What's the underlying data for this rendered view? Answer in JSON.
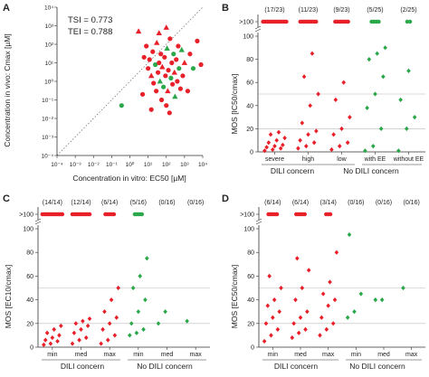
{
  "colors": {
    "red": "#e8202a",
    "green": "#2aa84a",
    "axis": "#333333",
    "ref": "#bbbbbb"
  },
  "chart_data": [
    {
      "panel": "A",
      "type": "scatter",
      "xlabel": "Concentration in vitro: EC50 [µM]",
      "ylabel": "Concentration in vivo: Cmax [µM]",
      "xscale": "log",
      "yscale": "log",
      "xlim": [
        0.0001,
        10000
      ],
      "ylim": [
        0.0001,
        10000
      ],
      "xticks": [
        "10⁻⁴",
        "10⁻³",
        "10⁻²",
        "10⁻¹",
        "10⁰",
        "10¹",
        "10²",
        "10³",
        "10⁴"
      ],
      "yticks": [
        "10⁻⁴",
        "10⁻³",
        "10⁻²",
        "10⁻¹",
        "10⁰",
        "10¹",
        "10²",
        "10³",
        "10⁴"
      ],
      "annotations": [
        "TSI = 0.773",
        "TEI = 0.788"
      ],
      "diagonal": "y = x (dotted)",
      "points": [
        {
          "x": 0.35,
          "y": 0.05,
          "c": "green",
          "m": "circle"
        },
        {
          "x": 3,
          "y": 500,
          "c": "red",
          "m": "triangle"
        },
        {
          "x": 6,
          "y": 20,
          "c": "red",
          "m": "circle"
        },
        {
          "x": 8,
          "y": 80,
          "c": "red",
          "m": "circle"
        },
        {
          "x": 10,
          "y": 5,
          "c": "red",
          "m": "circle"
        },
        {
          "x": 12,
          "y": 15,
          "c": "red",
          "m": "circle"
        },
        {
          "x": 15,
          "y": 2,
          "c": "red",
          "m": "triangle"
        },
        {
          "x": 18,
          "y": 40,
          "c": "red",
          "m": "circle"
        },
        {
          "x": 20,
          "y": 0.8,
          "c": "red",
          "m": "circle"
        },
        {
          "x": 25,
          "y": 8,
          "c": "green",
          "m": "circle"
        },
        {
          "x": 28,
          "y": 0.3,
          "c": "red",
          "m": "circle"
        },
        {
          "x": 30,
          "y": 120,
          "c": "red",
          "m": "triangle"
        },
        {
          "x": 35,
          "y": 3,
          "c": "red",
          "m": "circle"
        },
        {
          "x": 40,
          "y": 10,
          "c": "red",
          "m": "circle"
        },
        {
          "x": 45,
          "y": 1,
          "c": "green",
          "m": "triangle"
        },
        {
          "x": 50,
          "y": 30,
          "c": "red",
          "m": "circle"
        },
        {
          "x": 55,
          "y": 0.1,
          "c": "red",
          "m": "circle"
        },
        {
          "x": 60,
          "y": 6,
          "c": "red",
          "m": "triangle"
        },
        {
          "x": 70,
          "y": 0.5,
          "c": "green",
          "m": "circle"
        },
        {
          "x": 80,
          "y": 20,
          "c": "red",
          "m": "circle"
        },
        {
          "x": 90,
          "y": 2,
          "c": "red",
          "m": "circle"
        },
        {
          "x": 100,
          "y": 0.05,
          "c": "red",
          "m": "circle"
        },
        {
          "x": 110,
          "y": 60,
          "c": "green",
          "m": "triangle"
        },
        {
          "x": 120,
          "y": 0.3,
          "c": "red",
          "m": "triangle"
        },
        {
          "x": 130,
          "y": 4,
          "c": "red",
          "m": "circle"
        },
        {
          "x": 150,
          "y": 0.02,
          "c": "red",
          "m": "circle"
        },
        {
          "x": 160,
          "y": 200,
          "c": "red",
          "m": "circle"
        },
        {
          "x": 180,
          "y": 1.5,
          "c": "green",
          "m": "circle"
        },
        {
          "x": 200,
          "y": 10,
          "c": "red",
          "m": "circle"
        },
        {
          "x": 220,
          "y": 0.7,
          "c": "red",
          "m": "circle"
        },
        {
          "x": 250,
          "y": 30,
          "c": "green",
          "m": "circle"
        },
        {
          "x": 280,
          "y": 3,
          "c": "red",
          "m": "triangle"
        },
        {
          "x": 300,
          "y": 0.15,
          "c": "green",
          "m": "triangle"
        },
        {
          "x": 350,
          "y": 15,
          "c": "red",
          "m": "circle"
        },
        {
          "x": 400,
          "y": 1,
          "c": "red",
          "m": "circle"
        },
        {
          "x": 450,
          "y": 80,
          "c": "red",
          "m": "circle"
        },
        {
          "x": 500,
          "y": 5,
          "c": "green",
          "m": "circle"
        },
        {
          "x": 600,
          "y": 0.4,
          "c": "red",
          "m": "circle"
        },
        {
          "x": 700,
          "y": 50,
          "c": "green",
          "m": "triangle"
        },
        {
          "x": 800,
          "y": 2,
          "c": "red",
          "m": "circle"
        },
        {
          "x": 1000,
          "y": 10,
          "c": "red",
          "m": "triangle"
        },
        {
          "x": 1500,
          "y": 0.3,
          "c": "red",
          "m": "circle"
        },
        {
          "x": 2000,
          "y": 30,
          "c": "red",
          "m": "circle"
        },
        {
          "x": 3000,
          "y": 5,
          "c": "green",
          "m": "circle"
        },
        {
          "x": 5000,
          "y": 150,
          "c": "red",
          "m": "circle"
        },
        {
          "x": 8000,
          "y": 8,
          "c": "red",
          "m": "circle"
        },
        {
          "x": 40,
          "y": 400,
          "c": "red",
          "m": "triangle"
        },
        {
          "x": 100,
          "y": 800,
          "c": "red",
          "m": "triangle"
        },
        {
          "x": 15,
          "y": 0.03,
          "c": "red",
          "m": "circle"
        },
        {
          "x": 5,
          "y": 0.2,
          "c": "red",
          "m": "circle"
        }
      ]
    },
    {
      "panel": "B",
      "type": "scatter",
      "ylabel": "MOS [IC50/cmax]",
      "ylim": [
        0,
        100
      ],
      "yticks": [
        "0",
        "20",
        "40",
        "60",
        "80",
        "100",
        ">100"
      ],
      "ref_lines": [
        20,
        50
      ],
      "counts": [
        "(17/23)",
        "(11/23)",
        "(9/23)",
        "(5/25)",
        "(2/25)"
      ],
      "categories": [
        "severe",
        "high",
        "low",
        "with EE",
        "without EE"
      ],
      "group_labels": [
        "DILI concern",
        "No DILI concern"
      ],
      "columns": [
        {
          "color": "red",
          "values": [
            1,
            2,
            3,
            4,
            5,
            6,
            8,
            10,
            12,
            15,
            17
          ],
          "above": 17
        },
        {
          "color": "red",
          "values": [
            3,
            5,
            8,
            10,
            15,
            18,
            25,
            40,
            50,
            65,
            85
          ],
          "above": 11
        },
        {
          "color": "red",
          "values": [
            2,
            5,
            8,
            15,
            20,
            30,
            45,
            60
          ],
          "above": 9
        },
        {
          "color": "green",
          "values": [
            1,
            5,
            20,
            38,
            50,
            65,
            80,
            85,
            90
          ],
          "above": 5
        },
        {
          "color": "green",
          "values": [
            1,
            20,
            30,
            45,
            70
          ],
          "above": 2
        }
      ]
    },
    {
      "panel": "C",
      "type": "scatter",
      "ylabel": "MOS [EC10/cmax]",
      "ylim": [
        0,
        100
      ],
      "yticks": [
        "0",
        "20",
        "40",
        "60",
        "80",
        "100",
        ">100"
      ],
      "ref_lines": [
        20,
        50
      ],
      "counts": [
        "(14/14)",
        "(12/14)",
        "(6/14)",
        "(5/16)",
        "(0/16)",
        "(0/16)"
      ],
      "categories": [
        "min",
        "med",
        "max",
        "min",
        "med",
        "max"
      ],
      "group_labels": [
        "DILI concern",
        "No DILI concern"
      ],
      "columns": [
        {
          "color": "red",
          "values": [
            2,
            3,
            5,
            6,
            8,
            10,
            12,
            15,
            18
          ],
          "above": 14
        },
        {
          "color": "red",
          "values": [
            3,
            6,
            8,
            12,
            15,
            18,
            20,
            22,
            24
          ],
          "above": 12
        },
        {
          "color": "red",
          "values": [
            3,
            6,
            10,
            15,
            20,
            25,
            30,
            40,
            50
          ],
          "above": 6
        },
        {
          "color": "green",
          "values": [
            10,
            12,
            15,
            20,
            30,
            40,
            50,
            60,
            75
          ],
          "above": 5
        },
        {
          "color": "green",
          "values": [
            20,
            30
          ],
          "above": 0
        },
        {
          "color": "green",
          "values": [
            22
          ],
          "above": 0
        }
      ]
    },
    {
      "panel": "D",
      "type": "scatter",
      "ylabel": "MOS [EC50/cmax]",
      "ylim": [
        0,
        100
      ],
      "yticks": [
        "0",
        "20",
        "40",
        "60",
        "80",
        "100",
        ">100"
      ],
      "ref_lines": [
        20,
        50
      ],
      "counts": [
        "(6/14)",
        "(6/14)",
        "(3/14)",
        "(0/16)",
        "(0/16)",
        "(0/16)"
      ],
      "categories": [
        "min",
        "med",
        "max",
        "min",
        "med",
        "max"
      ],
      "group_labels": [
        "DILI concern",
        "No DILI concern"
      ],
      "columns": [
        {
          "color": "red",
          "values": [
            5,
            10,
            15,
            20,
            25,
            30,
            35,
            40,
            50,
            60
          ],
          "above": 6
        },
        {
          "color": "red",
          "values": [
            8,
            12,
            15,
            20,
            25,
            30,
            40,
            50,
            65,
            75
          ],
          "above": 6
        },
        {
          "color": "red",
          "values": [
            10,
            15,
            20,
            25,
            35,
            40,
            45,
            55,
            80
          ],
          "above": 3
        },
        {
          "color": "green",
          "values": [
            25,
            30,
            45,
            95
          ],
          "above": 0
        },
        {
          "color": "green",
          "values": [
            40,
            40
          ],
          "above": 0
        },
        {
          "color": "green",
          "values": [
            50
          ],
          "above": 0
        }
      ]
    }
  ]
}
